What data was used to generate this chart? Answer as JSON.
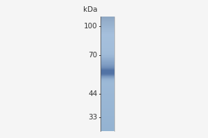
{
  "kda_label": "kDa",
  "mw_markers": [
    100,
    70,
    44,
    33
  ],
  "band_kda": 57,
  "bg_color": "#f0f0f0",
  "gel_color_top": "#7baac8",
  "gel_color_mid": "#9dc3d8",
  "gel_color_bot": "#b0d0e0",
  "band_color_dark": "#2a4a62",
  "font_size_marker": 7.5,
  "font_size_kda": 7.5,
  "tick_color": "#333333",
  "label_color": "#333333",
  "fig_bg": "#f5f5f5"
}
